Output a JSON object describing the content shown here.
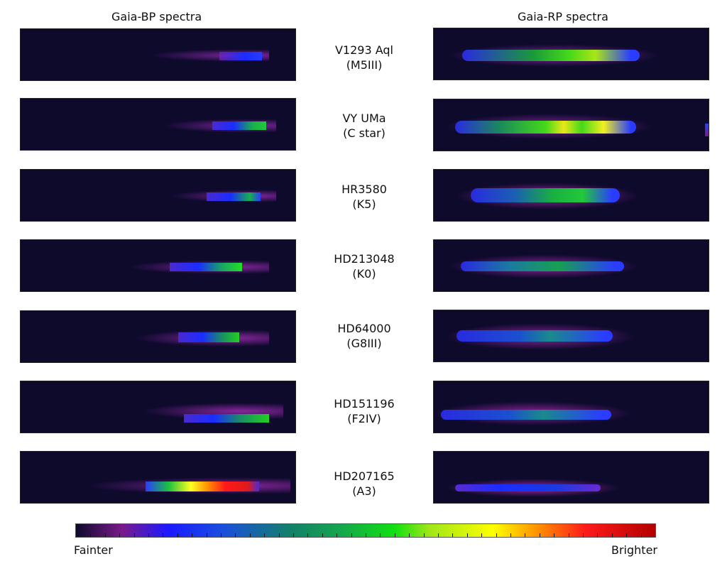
{
  "columns": {
    "bp_title": "Gaia-BP spectra",
    "rp_title": "Gaia-RP spectra"
  },
  "stars": [
    {
      "name": "V1293 Aql",
      "type": "(M5III)"
    },
    {
      "name": "VY UMa",
      "type": "(C star)"
    },
    {
      "name": "HR3580",
      "type": "(K5)"
    },
    {
      "name": "HD213048",
      "type": "(K0)"
    },
    {
      "name": "HD64000",
      "type": "(G8III)"
    },
    {
      "name": "HD151196",
      "type": "(F2IV)"
    },
    {
      "name": "HD207165",
      "type": "(A3)"
    }
  ],
  "colorbar": {
    "left_label": "Fainter",
    "right_label": "Brighter",
    "background": "#0d0a2c"
  }
}
